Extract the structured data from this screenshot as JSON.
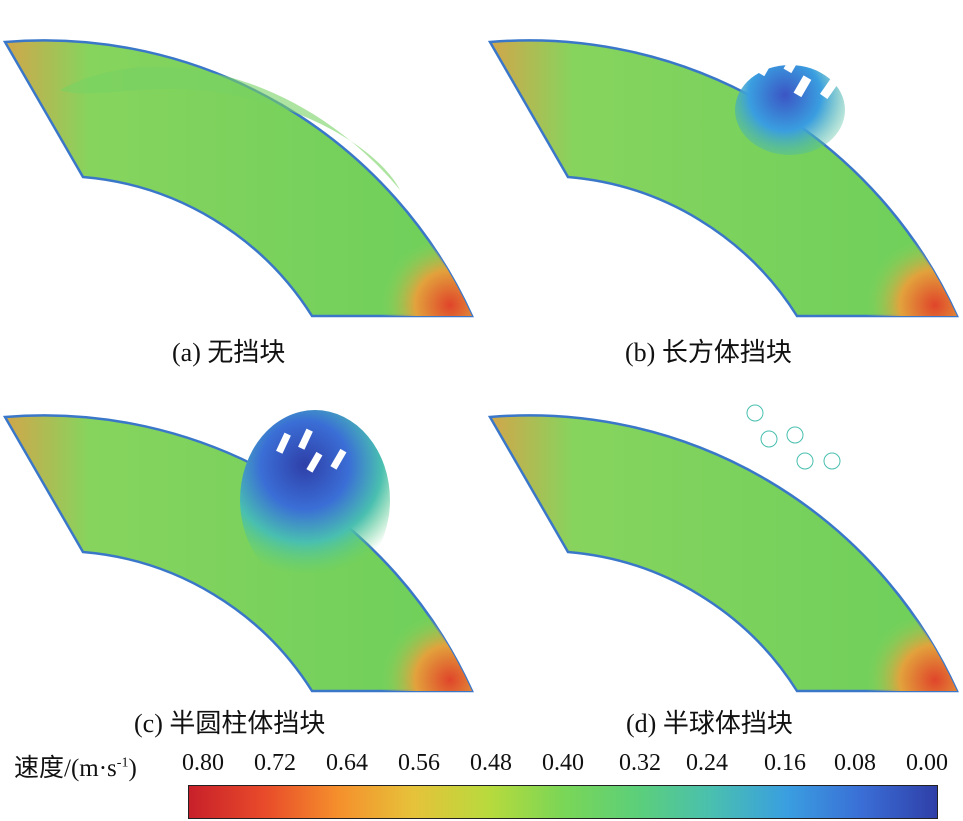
{
  "colors": {
    "ring_green": "#6ccf5a",
    "ring_green_light": "#86d45e",
    "edge_orange": "#d2a64a",
    "hot_red": "#e0452a",
    "low_blue": "#3b55c4",
    "outline_blue": "#3a77c9",
    "blockage_white": "#ffffff"
  },
  "panels": [
    {
      "id": "a",
      "caption": "(a) 无挡块",
      "blockage": "none"
    },
    {
      "id": "b",
      "caption": "(b) 长方体挡块",
      "blockage": "rectangular"
    },
    {
      "id": "c",
      "caption": "(c) 半圆柱体挡块",
      "blockage": "half-cylinder"
    },
    {
      "id": "d",
      "caption": "(d) 半球体挡块",
      "blockage": "hemisphere"
    }
  ],
  "colorbar": {
    "title_main": "速度/(m·s",
    "title_sup": "-1",
    "title_end": ")",
    "ticks": [
      "0.80",
      "0.72",
      "0.64",
      "0.56",
      "0.48",
      "0.40",
      "0.32",
      "0.24",
      "0.16",
      "0.08",
      "0.00"
    ],
    "gradient": [
      "#c8202a",
      "#e84a2a",
      "#f5902c",
      "#e6c23a",
      "#b8da3c",
      "#7ad656",
      "#5ccf7a",
      "#49bfb0",
      "#3a9ee0",
      "#3a6ed6",
      "#2f3fa8"
    ]
  }
}
